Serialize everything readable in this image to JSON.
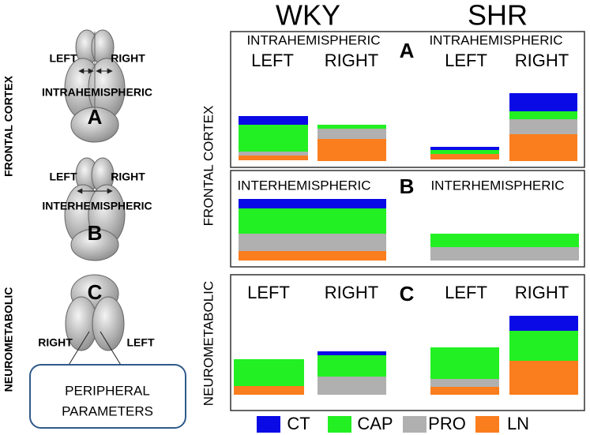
{
  "groups": [
    "WKY",
    "SHR"
  ],
  "side_labels": {
    "frontal": "FRONTAL CORTEX",
    "neuro": "NEUROMETABOLIC"
  },
  "diagram": {
    "a": {
      "left": "LEFT",
      "right": "RIGHT",
      "name": "INTRAHEMISPHERIC",
      "letter": "A"
    },
    "b": {
      "left": "LEFT",
      "right": "RIGHT",
      "name": "INTERHEMISPHERIC",
      "letter": "B"
    },
    "c": {
      "letter": "C",
      "right": "RIGHT",
      "left": "LEFT",
      "box": [
        "PERIPHERAL",
        "PARAMETERS"
      ]
    }
  },
  "panels": {
    "a": {
      "wky_title": "INTRAHEMISPHERIC",
      "shr_title": "INTRAHEMISPHERIC",
      "left": "LEFT",
      "right": "RIGHT",
      "letter": "A"
    },
    "b": {
      "wky_title": "INTERHEMISPHERIC",
      "shr_title": "INTERHEMISPHERIC",
      "letter": "B"
    },
    "c": {
      "left": "LEFT",
      "right": "RIGHT",
      "letter": "C"
    }
  },
  "legend": [
    "CT",
    "CAP",
    "PRO",
    "LN"
  ]
}
